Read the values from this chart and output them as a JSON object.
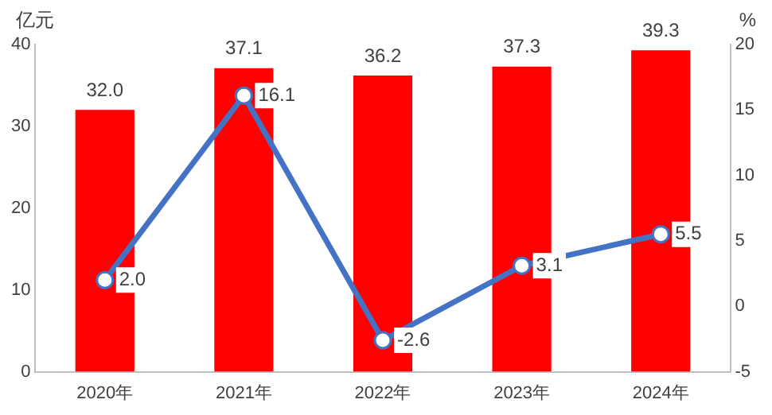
{
  "chart_data": {
    "type": "bar",
    "ylabel": "亿元",
    "y2label": "%",
    "categories": [
      "2020年",
      "2021年",
      "2022年",
      "2023年",
      "2024年"
    ],
    "series": [
      {
        "color": "#ff0000",
        "values": [
          32.0,
          37.1,
          36.2,
          37.3,
          39.3
        ],
        "value_labels": [
          "32.0",
          "37.1",
          "36.2",
          "37.3",
          "39.3"
        ]
      },
      {
        "type": "line",
        "axis": "y2",
        "color": "#4472c4",
        "values": [
          2.0,
          16.1,
          -2.6,
          3.1,
          5.5
        ],
        "value_labels": [
          "2.0",
          "16.1",
          "-2.6",
          "3.1",
          "5.5"
        ]
      }
    ],
    "ylim": [
      0,
      40
    ],
    "yticks": [
      0,
      10,
      20,
      30,
      40
    ],
    "y2lim": [
      -5,
      20
    ],
    "y2ticks": [
      -5,
      0,
      5,
      10,
      15,
      20
    ],
    "grid": false,
    "legend": false,
    "marker": "circle",
    "line_style": "solid"
  }
}
